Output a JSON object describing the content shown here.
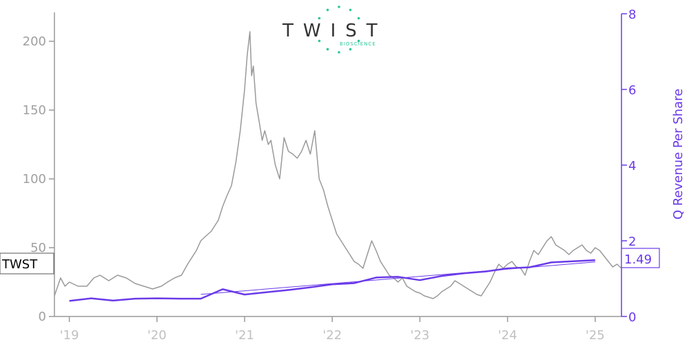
{
  "logo": {
    "word": "TWIST",
    "sub": "BIOSCIENCE",
    "color": "#2ec89a"
  },
  "ticker_label": "TWST",
  "last_value_label": "1.49",
  "chart_data": {
    "type": "line",
    "x_tick_labels": [
      "'19",
      "'20",
      "'21",
      "'22",
      "'23",
      "'24",
      "'25"
    ],
    "x_ticks": [
      2019,
      2020,
      2021,
      2022,
      2023,
      2024,
      2025
    ],
    "xlim": [
      2018.83,
      2025.3
    ],
    "left_axis": {
      "label": "",
      "ticks": [
        0,
        50,
        100,
        150,
        200
      ],
      "ylim": [
        0,
        220
      ],
      "color": "#999999"
    },
    "right_axis": {
      "label": "Q Revenue Per Share",
      "ticks": [
        0,
        2,
        4,
        6,
        8
      ],
      "ylim": [
        0,
        8
      ],
      "color": "#6a3ae8"
    },
    "series": [
      {
        "axis": "left",
        "color": "#999999",
        "x": [
          2018.83,
          2018.9,
          2018.95,
          2019.0,
          2019.1,
          2019.2,
          2019.28,
          2019.35,
          2019.45,
          2019.55,
          2019.65,
          2019.75,
          2019.85,
          2019.95,
          2020.05,
          2020.12,
          2020.2,
          2020.28,
          2020.35,
          2020.45,
          2020.5,
          2020.55,
          2020.62,
          2020.7,
          2020.75,
          2020.8,
          2020.85,
          2020.9,
          2020.95,
          2021.0,
          2021.03,
          2021.06,
          2021.08,
          2021.1,
          2021.13,
          2021.17,
          2021.2,
          2021.23,
          2021.27,
          2021.3,
          2021.35,
          2021.4,
          2021.45,
          2021.5,
          2021.55,
          2021.6,
          2021.65,
          2021.7,
          2021.75,
          2021.8,
          2021.85,
          2021.9,
          2021.95,
          2022.0,
          2022.05,
          2022.1,
          2022.15,
          2022.2,
          2022.25,
          2022.3,
          2022.35,
          2022.4,
          2022.45,
          2022.5,
          2022.55,
          2022.6,
          2022.65,
          2022.7,
          2022.75,
          2022.8,
          2022.85,
          2022.9,
          2022.95,
          2023.0,
          2023.05,
          2023.1,
          2023.15,
          2023.2,
          2023.25,
          2023.3,
          2023.35,
          2023.4,
          2023.45,
          2023.5,
          2023.55,
          2023.6,
          2023.65,
          2023.7,
          2023.75,
          2023.8,
          2023.85,
          2023.9,
          2023.95,
          2024.0,
          2024.05,
          2024.1,
          2024.15,
          2024.2,
          2024.25,
          2024.3,
          2024.35,
          2024.4,
          2024.45,
          2024.5,
          2024.55,
          2024.6,
          2024.65,
          2024.7,
          2024.75,
          2024.8,
          2024.85,
          2024.9,
          2024.95,
          2025.0,
          2025.05,
          2025.1,
          2025.15,
          2025.2,
          2025.25,
          2025.3
        ],
        "y": [
          15,
          28,
          22,
          25,
          22,
          22,
          28,
          30,
          26,
          30,
          28,
          24,
          22,
          20,
          22,
          25,
          28,
          30,
          38,
          48,
          55,
          58,
          62,
          70,
          80,
          88,
          95,
          112,
          135,
          165,
          190,
          207,
          175,
          182,
          155,
          140,
          128,
          135,
          125,
          128,
          110,
          100,
          130,
          120,
          118,
          115,
          120,
          128,
          118,
          135,
          100,
          92,
          80,
          70,
          60,
          55,
          50,
          45,
          40,
          38,
          35,
          45,
          55,
          48,
          40,
          35,
          30,
          28,
          25,
          28,
          22,
          20,
          18,
          17,
          15,
          14,
          13,
          15,
          18,
          20,
          22,
          26,
          24,
          22,
          20,
          18,
          16,
          15,
          20,
          25,
          32,
          38,
          35,
          38,
          40,
          36,
          35,
          30,
          40,
          48,
          45,
          50,
          55,
          58,
          52,
          50,
          48,
          45,
          48,
          50,
          52,
          48,
          46,
          50,
          48,
          44,
          40,
          36,
          38,
          35
        ]
      },
      {
        "axis": "right",
        "color": "#6a3ae8",
        "x": [
          2019.0,
          2019.25,
          2019.5,
          2019.75,
          2020.0,
          2020.25,
          2020.5,
          2020.75,
          2021.0,
          2021.25,
          2021.5,
          2021.75,
          2022.0,
          2022.25,
          2022.5,
          2022.75,
          2023.0,
          2023.25,
          2023.5,
          2023.75,
          2024.0,
          2024.25,
          2024.5,
          2024.75,
          2025.0
        ],
        "y": [
          0.41,
          0.48,
          0.42,
          0.47,
          0.48,
          0.47,
          0.47,
          0.72,
          0.58,
          0.64,
          0.7,
          0.77,
          0.85,
          0.88,
          1.03,
          1.05,
          0.96,
          1.07,
          1.14,
          1.19,
          1.27,
          1.3,
          1.43,
          1.46,
          1.49
        ]
      }
    ]
  }
}
